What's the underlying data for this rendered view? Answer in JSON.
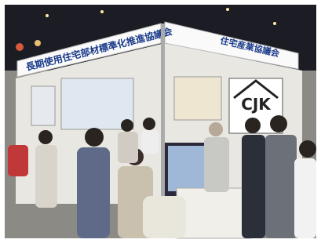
{
  "signs": {
    "left": "長期使用住宅部材標準化推進協議会",
    "right": "住宅産業協議会"
  },
  "logo": "CJK"
}
